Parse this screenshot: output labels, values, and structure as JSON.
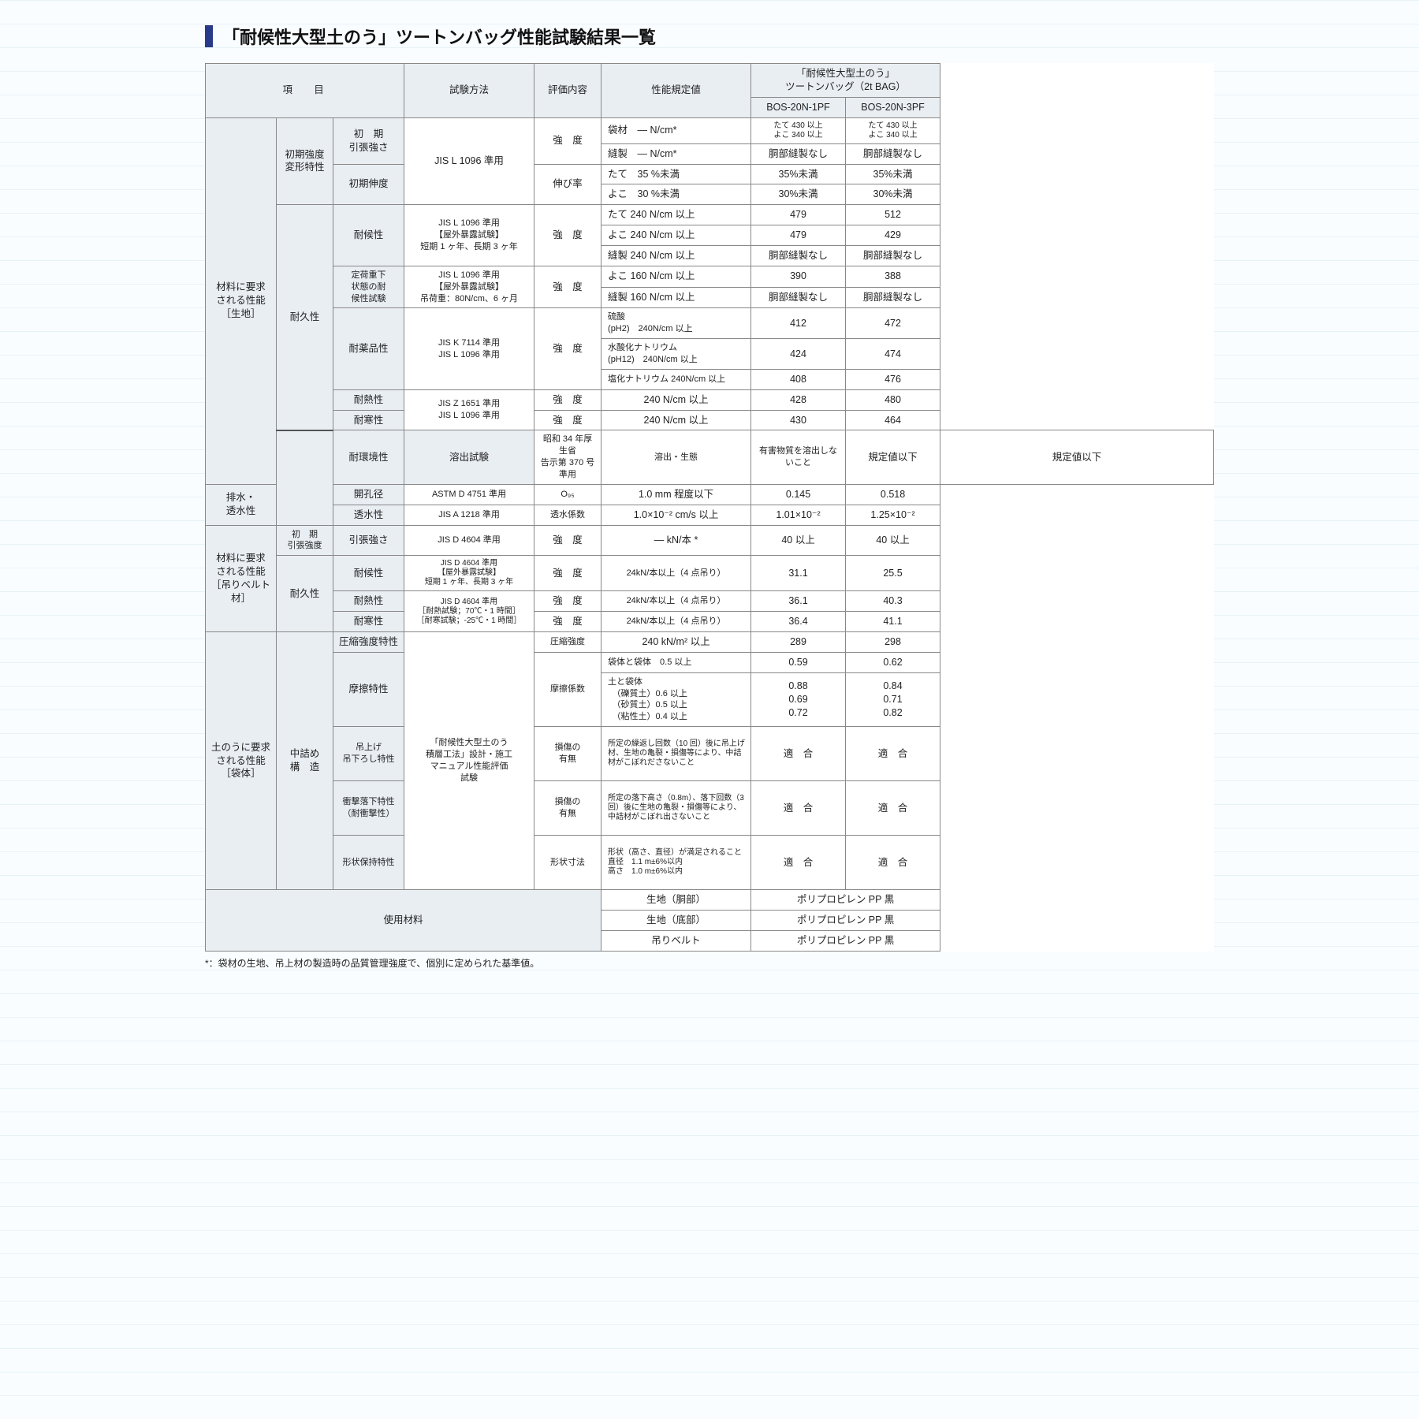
{
  "title": "「耐候性大型土のう」ツートンバッグ性能試験結果一覧",
  "headers": {
    "item": "項　 目",
    "method": "試験方法",
    "eval": "評価内容",
    "spec": "性能規定値",
    "product_group": "「耐候性大型土のう」\nツートンバッグ（2t BAG）",
    "model1": "BOS-20N-1PF",
    "model2": "BOS-20N-3PF"
  },
  "sec1": {
    "label": "材料に要求\nされる性能\n［生地］",
    "g1": "初期強度\n変形特性",
    "g1a": "初　期\n引張強さ",
    "g1b": "初期伸度",
    "g1_method": "JIS L 1096 準用",
    "g1_eval1": "強　度",
    "g1_eval2": "伸び率",
    "g1_r1": {
      "spec": "袋材　— N/cm*",
      "v1": "たて 430 以上\nよこ 340 以上",
      "v2": "たて 430 以上\nよこ 340 以上"
    },
    "g1_r2": {
      "spec": "縫製　— N/cm*",
      "v1": "胴部縫製なし",
      "v2": "胴部縫製なし"
    },
    "g1_r3": {
      "spec": "たて　35 %未満",
      "v1": "35%未満",
      "v2": "35%未満"
    },
    "g1_r4": {
      "spec": "よこ　30 %未満",
      "v1": "30%未満",
      "v2": "30%未満"
    },
    "g2": "耐久性",
    "g2a": "耐候性",
    "g2a_method": "JIS L 1096 準用\n【屋外暴露試験】\n短期 1 ヶ年、長期 3 ヶ年",
    "g2a_eval": "強　度",
    "g2a_r1": {
      "spec": "たて 240 N/cm 以上",
      "v1": "479",
      "v2": "512"
    },
    "g2a_r2": {
      "spec": "よこ 240 N/cm 以上",
      "v1": "479",
      "v2": "429"
    },
    "g2a_r3": {
      "spec": "縫製 240 N/cm 以上",
      "v1": "胴部縫製なし",
      "v2": "胴部縫製なし"
    },
    "g2b": "定荷重下\n状態の耐\n候性試験",
    "g2b_method": "JIS L 1096 準用\n【屋外暴露試験】\n吊荷重：80N/cm、6 ヶ月",
    "g2b_eval": "強　度",
    "g2b_r1": {
      "spec": "よこ 160 N/cm 以上",
      "v1": "390",
      "v2": "388"
    },
    "g2b_r2": {
      "spec": "縫製 160 N/cm 以上",
      "v1": "胴部縫製なし",
      "v2": "胴部縫製なし"
    },
    "g2c": "耐薬品性",
    "g2c_method": "JIS K 7114 準用\nJIS L 1096 準用",
    "g2c_eval": "強　度",
    "g2c_r1": {
      "spec": "硫酸\n(pH2)　240N/cm 以上",
      "v1": "412",
      "v2": "472"
    },
    "g2c_r2": {
      "spec": "水酸化ナトリウム\n(pH12)　240N/cm 以上",
      "v1": "424",
      "v2": "474"
    },
    "g2c_r3": {
      "spec": "塩化ナトリウム 240N/cm 以上",
      "v1": "408",
      "v2": "476"
    },
    "g2d": "耐熱性",
    "g2de_method": "JIS Z 1651 準用\nJIS L 1096 準用",
    "g2d_eval": "強　度",
    "g2d_r": {
      "spec": "240 N/cm 以上",
      "v1": "428",
      "v2": "480"
    },
    "g2e": "耐寒性",
    "g2e_eval": "強　度",
    "g2e_r": {
      "spec": "240 N/cm 以上",
      "v1": "430",
      "v2": "464"
    },
    "g3": "耐環境性",
    "g3a": "溶出試験",
    "g3_method": "昭和 34 年厚生省\n告示第 370 号準用",
    "g3_eval": "溶出・生態",
    "g3_r": {
      "spec": "有害物質を溶出しないこと",
      "v1": "規定値以下",
      "v2": "規定値以下"
    },
    "g4": "排水・\n透水性",
    "g4a": "開孔径",
    "g4a_method": "ASTM D 4751 準用",
    "g4a_eval": "O₉₅",
    "g4a_r": {
      "spec": "1.0 mm 程度以下",
      "v1": "0.145",
      "v2": "0.518"
    },
    "g4b": "透水性",
    "g4b_method": "JIS A 1218 準用",
    "g4b_eval": "透水係数",
    "g4b_r": {
      "spec": "1.0×10⁻² cm/s 以上",
      "v1": "1.01×10⁻²",
      "v2": "1.25×10⁻²"
    }
  },
  "sec2": {
    "label": "材料に要求\nされる性能\n［吊りベルト材］",
    "g1": "初　期\n引張強度",
    "g1a": "引張強さ",
    "g1_method": "JIS D 4604 準用",
    "g1_eval": "強　度",
    "g1_r": {
      "spec": "— kN/本 *",
      "v1": "40 以上",
      "v2": "40 以上"
    },
    "g2": "耐久性",
    "g2a": "耐候性",
    "g2a_method": "JIS D 4604 準用\n【屋外暴露試験】\n短期 1 ヶ年、長期 3 ヶ年",
    "g2a_eval": "強　度",
    "g2a_r": {
      "spec": "24kN/本以上（4 点吊り）",
      "v1": "31.1",
      "v2": "25.5"
    },
    "g2b": "耐熱性",
    "g2bc_method": "JIS D 4604 準用\n［耐熱試験；70℃・1 時間］\n［耐寒試験；-25℃・1 時間］",
    "g2b_eval": "強　度",
    "g2b_r": {
      "spec": "24kN/本以上（4 点吊り）",
      "v1": "36.1",
      "v2": "40.3"
    },
    "g2c": "耐寒性",
    "g2c_eval": "強　度",
    "g2c_r": {
      "spec": "24kN/本以上（4 点吊り）",
      "v1": "36.4",
      "v2": "41.1"
    }
  },
  "sec3": {
    "label": "土のうに要求\nされる性能\n［袋体］",
    "g1": "中詰め\n構　造",
    "method": "「耐候性大型土のう\n積層工法」設計・施工\nマニュアル性能評価\n試験",
    "r1": {
      "sub": "圧縮強度特性",
      "eval": "圧縮強度",
      "spec": "240 kN/m² 以上",
      "v1": "289",
      "v2": "298"
    },
    "r2": {
      "sub": "摩擦特性",
      "eval": "摩擦係数"
    },
    "r2a": {
      "spec": "袋体と袋体　0.5 以上",
      "v1": "0.59",
      "v2": "0.62"
    },
    "r2b": {
      "spec": "土と袋体\n　（礫質土）0.6 以上\n　（砂質土）0.5 以上\n　（粘性土）0.4 以上",
      "v1": "0.88\n0.69\n0.72",
      "v2": "0.84\n0.71\n0.82"
    },
    "r3": {
      "sub": "吊上げ\n吊下ろし特性",
      "eval": "損傷の\n有無",
      "spec": "所定の繰返し回数（10 回）後に吊上げ材、生地の亀裂・損傷等により、中詰材がこぼれださないこと",
      "v1": "適　合",
      "v2": "適　合"
    },
    "r4": {
      "sub": "衝撃落下特性\n（耐衝撃性）",
      "eval": "損傷の\n有無",
      "spec": "所定の落下高さ（0.8m）、落下回数（3 回）後に生地の亀裂・損傷等により、中詰材がこぼれ出さないこと",
      "v1": "適　合",
      "v2": "適　合"
    },
    "r5": {
      "sub": "形状保持特性",
      "eval": "形状寸法",
      "spec": "形状（高さ、直径）が満足されること\n直径　1.1 m±6%以内\n高さ　1.0 m±6%以内",
      "v1": "適　合",
      "v2": "適　合"
    }
  },
  "sec4": {
    "label": "使用材料",
    "r1": {
      "spec": "生地（胴部）",
      "v": "ポリプロピレン PP 黒"
    },
    "r2": {
      "spec": "生地（底部）",
      "v": "ポリプロピレン PP 黒"
    },
    "r3": {
      "spec": "吊りベルト",
      "v": "ポリプロピレン PP 黒"
    }
  },
  "footnote": "*：袋材の生地、吊上材の製造時の品質管理強度で、個別に定められた基準値。"
}
